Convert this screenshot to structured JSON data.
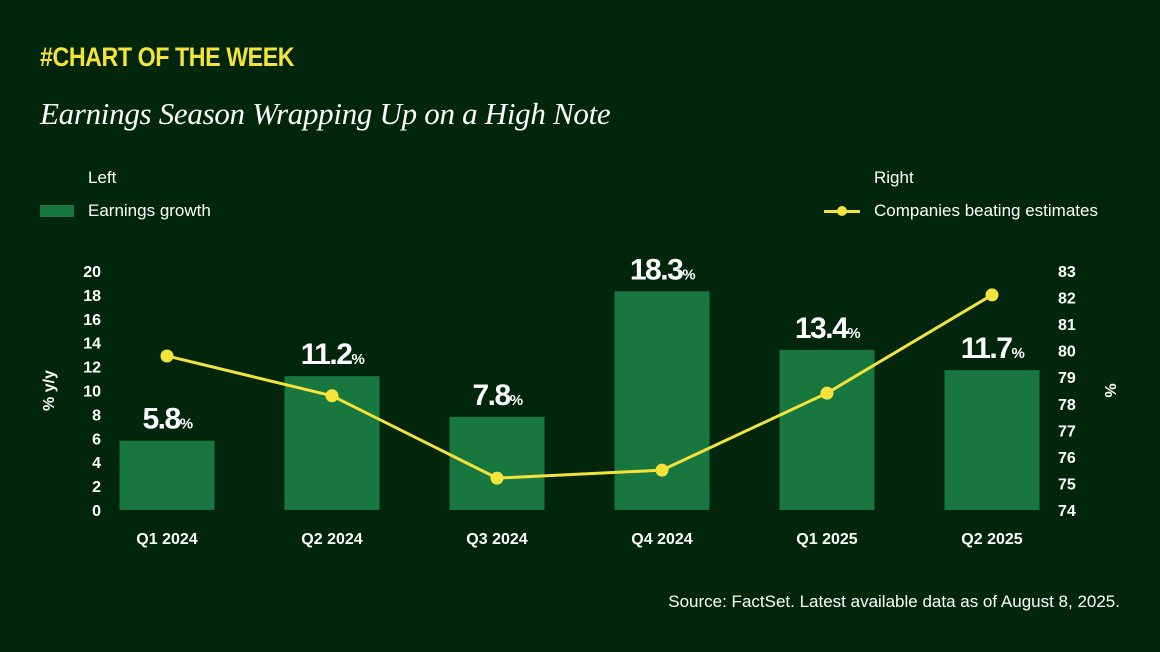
{
  "header": {
    "kicker": "#CHART OF THE WEEK",
    "title": "Earnings Season Wrapping Up on a High Note"
  },
  "legend": {
    "left_heading": "Left",
    "right_heading": "Right",
    "left_series": "Earnings growth",
    "right_series": "Companies beating estimates"
  },
  "source": "Source: FactSet. Latest available data as of August 8, 2025.",
  "colors": {
    "background": "#01260b",
    "bar": "#18773f",
    "line": "#f3e33a",
    "kicker": "#f3e33a",
    "text": "#ffffff"
  },
  "chart_data": {
    "type": "bar",
    "categories": [
      "Q1 2024",
      "Q2 2024",
      "Q3 2024",
      "Q4 2024",
      "Q1 2025",
      "Q2 2025"
    ],
    "series": [
      {
        "name": "Earnings growth",
        "type": "bar",
        "axis": "left",
        "values": [
          5.8,
          11.2,
          7.8,
          18.3,
          13.4,
          11.7
        ],
        "labels": [
          "5.8",
          "11.2",
          "7.8",
          "18.3",
          "13.4",
          "11.7"
        ],
        "label_suffix": "%"
      },
      {
        "name": "Companies beating estimates",
        "type": "line",
        "axis": "right",
        "values": [
          79.8,
          78.3,
          75.2,
          75.5,
          78.4,
          82.1
        ]
      }
    ],
    "left_axis": {
      "label": "% y/y",
      "min": 0,
      "max": 20,
      "ticks": [
        0,
        2,
        4,
        6,
        8,
        10,
        12,
        14,
        16,
        18,
        20
      ]
    },
    "right_axis": {
      "label": "%",
      "min": 74,
      "max": 83,
      "ticks": [
        74,
        75,
        76,
        77,
        78,
        79,
        80,
        81,
        82,
        83
      ]
    },
    "grid": false,
    "legend_position": "top"
  }
}
